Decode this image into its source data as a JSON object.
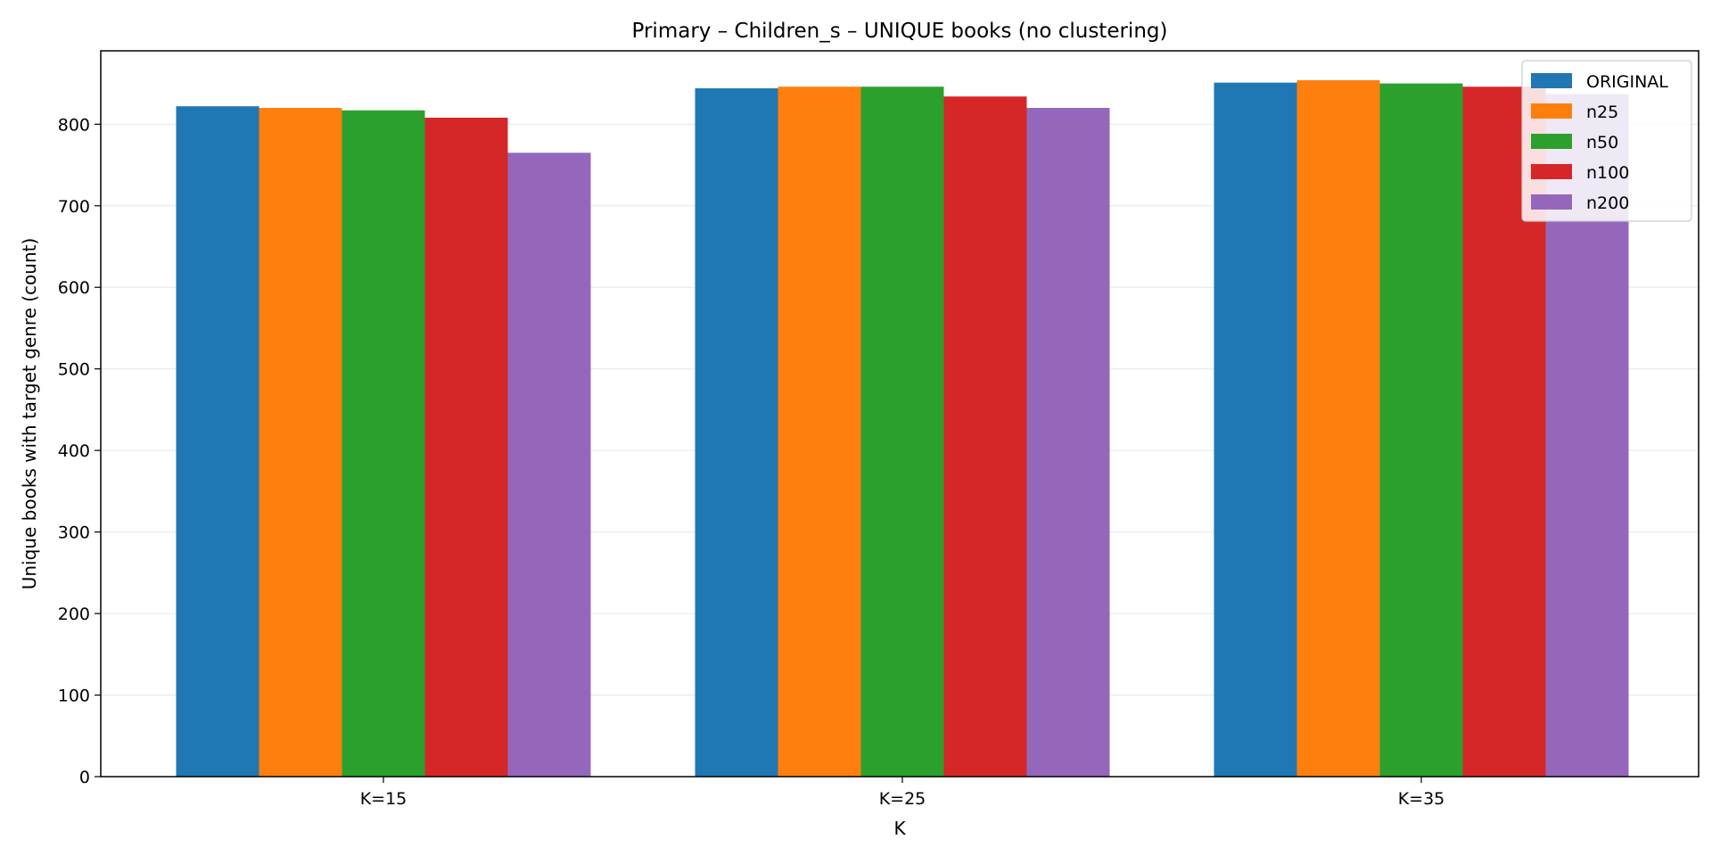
{
  "chart_data": {
    "type": "bar",
    "title": "Primary – Children_s – UNIQUE books (no clustering)",
    "xlabel": "K",
    "ylabel": "Unique books with target genre (count)",
    "categories": [
      "K=15",
      "K=25",
      "K=35"
    ],
    "ylim": [
      0,
      890
    ],
    "yticks": [
      0,
      100,
      200,
      300,
      400,
      500,
      600,
      700,
      800
    ],
    "grid": "y",
    "legend_position": "top-right",
    "series": [
      {
        "name": "ORIGINAL",
        "color": "#1f77b4",
        "values": [
          822,
          844,
          851
        ]
      },
      {
        "name": "n25",
        "color": "#ff7f0e",
        "values": [
          820,
          846,
          854
        ]
      },
      {
        "name": "n50",
        "color": "#2ca02c",
        "values": [
          817,
          846,
          850
        ]
      },
      {
        "name": "n100",
        "color": "#d62728",
        "values": [
          808,
          834,
          846
        ]
      },
      {
        "name": "n200",
        "color": "#9467bd",
        "values": [
          765,
          820,
          837
        ]
      }
    ]
  }
}
